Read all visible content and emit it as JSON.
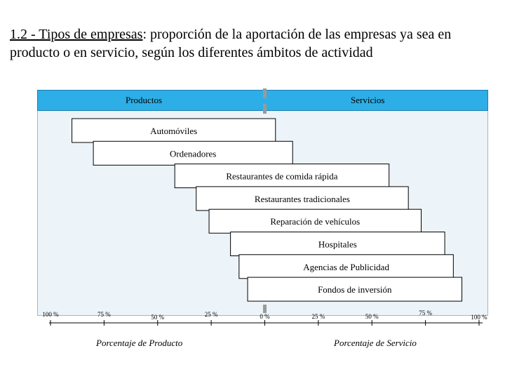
{
  "title": {
    "underlined": "1.2 - Tipos de empresas",
    "rest": ": proporción de la aportación de las empresas ya sea en producto o en servicio, según los diferentes ámbitos de actividad"
  },
  "header": {
    "left": "Productos",
    "right": "Servicios"
  },
  "axis": {
    "product_label": "Porcentaje de Producto",
    "service_label": "Porcentaje de Servicio",
    "product_ticks": [
      "100 %",
      "75  %",
      "50  %",
      "25  %"
    ],
    "center_tick": "0  %",
    "service_ticks": [
      "25  %",
      "50  %",
      "75  %",
      "100  %"
    ]
  },
  "colors": {
    "header": "#2eaee6",
    "panel": "#ecf4fa",
    "bar_edge": "#000000",
    "center_line": "#9a9a9a"
  },
  "chart_data": {
    "type": "bar",
    "orientation": "horizontal-floating",
    "xlabel_left": "Porcentaje de Producto",
    "xlabel_right": "Porcentaje de Servicio",
    "xlim": [
      -100,
      100
    ],
    "categories": [
      "Automóviles",
      "Ordenadores",
      "Restaurantes de comida rápida",
      "Restaurantes tradicionales",
      "Reparación de vehículos",
      "Hospitales",
      "Agencias de Publicidad",
      "Fondos de inversión"
    ],
    "ranges": [
      [
        -90,
        5
      ],
      [
        -80,
        13
      ],
      [
        -42,
        58
      ],
      [
        -32,
        67
      ],
      [
        -26,
        73
      ],
      [
        -16,
        84
      ],
      [
        -12,
        88
      ],
      [
        -8,
        92
      ]
    ]
  }
}
